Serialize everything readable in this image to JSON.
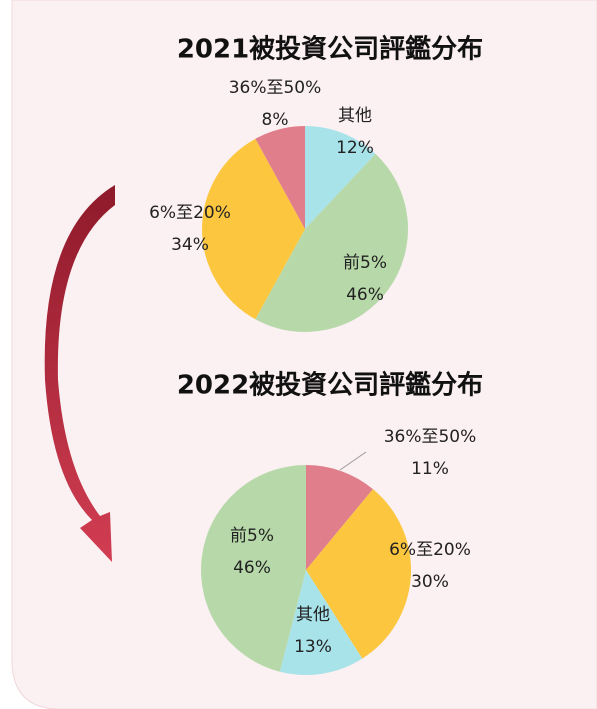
{
  "chart_data": [
    {
      "type": "pie",
      "title": "2021被投資公司評鑑分布",
      "categories": [
        "其他",
        "前5%",
        "6%至20%",
        "36%至50%"
      ],
      "values": [
        12,
        46,
        34,
        8
      ],
      "value_labels": [
        "12%",
        "46%",
        "34%",
        "8%"
      ],
      "colors": [
        "#a8e3ea",
        "#b7d9a9",
        "#fcc73e",
        "#e07f8b"
      ]
    },
    {
      "type": "pie",
      "title": "2022被投資公司評鑑分布",
      "categories": [
        "36%至50%",
        "6%至20%",
        "其他",
        "前5%"
      ],
      "values": [
        11,
        30,
        13,
        46
      ],
      "value_labels": [
        "11%",
        "30%",
        "13%",
        "46%"
      ],
      "colors": [
        "#e07f8b",
        "#fcc73e",
        "#a8e3ea",
        "#b7d9a9"
      ]
    }
  ]
}
